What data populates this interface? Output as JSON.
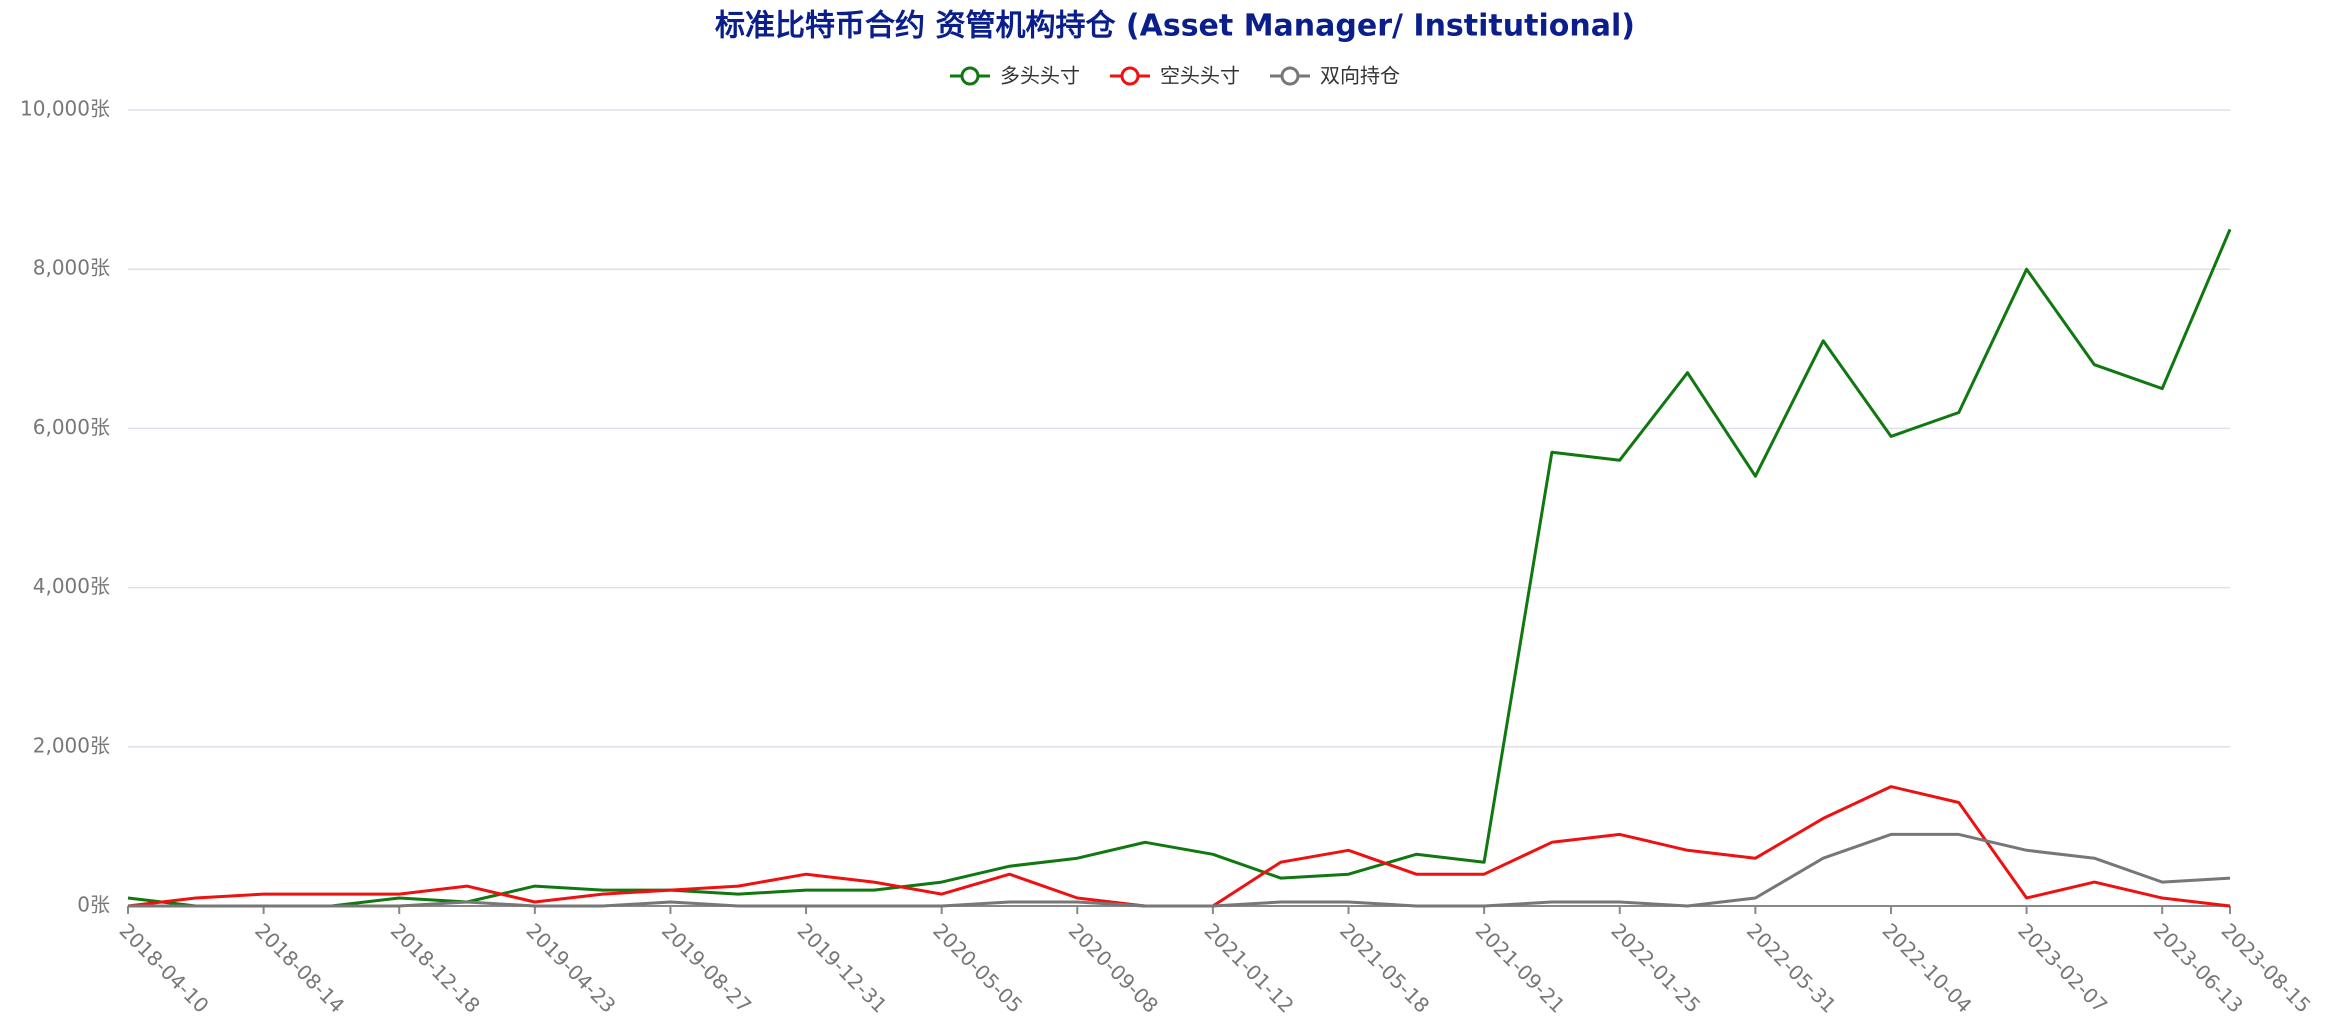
{
  "chart_data": {
    "type": "line",
    "title": "标准比特币合约 资管机构持仓 (Asset Manager/ Institutional)",
    "x": [
      "2018-04-10",
      "2018-06-12",
      "2018-08-14",
      "2018-10-16",
      "2018-12-18",
      "2019-02-19",
      "2019-04-23",
      "2019-06-25",
      "2019-08-27",
      "2019-10-29",
      "2019-12-31",
      "2020-03-03",
      "2020-05-05",
      "2020-07-07",
      "2020-09-08",
      "2020-11-10",
      "2021-01-12",
      "2021-03-16",
      "2021-05-18",
      "2021-07-20",
      "2021-09-21",
      "2021-11-23",
      "2022-01-25",
      "2022-03-29",
      "2022-05-31",
      "2022-08-02",
      "2022-10-04",
      "2022-12-06",
      "2023-02-07",
      "2023-04-11",
      "2023-06-13",
      "2023-08-15"
    ],
    "series": [
      {
        "name": "多头头寸",
        "color": "#117711",
        "values": [
          100,
          0,
          0,
          0,
          100,
          50,
          250,
          200,
          200,
          150,
          200,
          200,
          300,
          500,
          600,
          800,
          650,
          350,
          400,
          650,
          550,
          5700,
          5600,
          6700,
          5400,
          7100,
          5900,
          6200,
          8000,
          6800,
          6500,
          8500
        ]
      },
      {
        "name": "空头头寸",
        "color": "#ee1111",
        "values": [
          0,
          100,
          150,
          150,
          150,
          250,
          50,
          150,
          200,
          250,
          400,
          300,
          150,
          400,
          100,
          0,
          0,
          550,
          700,
          400,
          400,
          800,
          900,
          700,
          600,
          1100,
          1500,
          1300,
          100,
          300,
          100,
          0
        ]
      },
      {
        "name": "双向持仓",
        "color": "#777777",
        "values": [
          0,
          0,
          0,
          0,
          0,
          50,
          0,
          0,
          50,
          0,
          0,
          0,
          0,
          50,
          50,
          0,
          0,
          50,
          50,
          0,
          0,
          50,
          50,
          0,
          100,
          600,
          900,
          900,
          700,
          600,
          300,
          350
        ]
      }
    ],
    "xlim": [
      "2018-04-10",
      "2023-08-15"
    ],
    "xticks": [
      "2018-04-10",
      "2018-08-14",
      "2018-12-18",
      "2019-04-23",
      "2019-08-27",
      "2019-12-31",
      "2020-05-05",
      "2020-09-08",
      "2021-01-12",
      "2021-05-18",
      "2021-09-21",
      "2022-01-25",
      "2022-05-31",
      "2022-10-04",
      "2023-02-07",
      "2023-06-13",
      "2023-08-15"
    ],
    "ylim": [
      0,
      10000
    ],
    "yticks": [
      {
        "value": 0,
        "label": "0张"
      },
      {
        "value": 2000,
        "label": "2,000张"
      },
      {
        "value": 4000,
        "label": "4,000张"
      },
      {
        "value": 6000,
        "label": "6,000张"
      },
      {
        "value": 8000,
        "label": "8,000张"
      },
      {
        "value": 10000,
        "label": "10,000张"
      }
    ],
    "grid": true
  }
}
